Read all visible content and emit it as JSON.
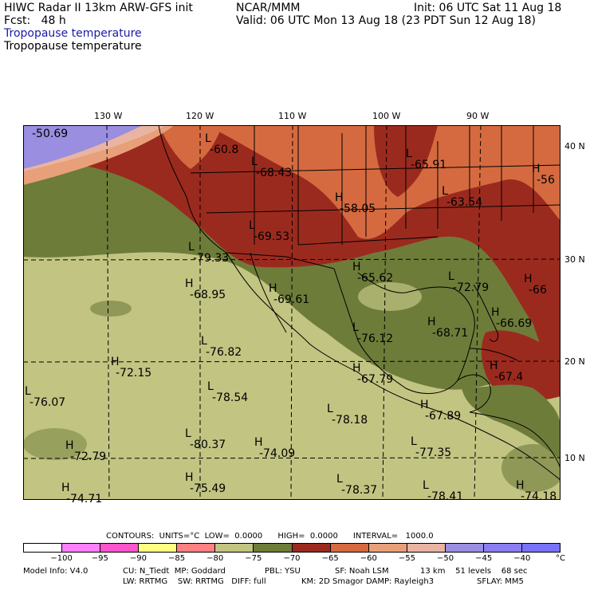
{
  "header": {
    "line1_left": "HIWC Radar II 13km ARW-GFS init",
    "line1_mid": "NCAR/MMM",
    "line1_right": "Init: 06 UTC Sat 11 Aug 18",
    "line2_left": "Fcst:   48 h",
    "line2_right": "Valid: 06 UTC Mon 13 Aug 18 (23 PDT Sun 12 Aug 18)",
    "line3": "Tropopause temperature",
    "line4": "Tropopause temperature"
  },
  "lon_labels": [
    "130 W",
    "120 W",
    "110 W",
    "100 W",
    "90 W"
  ],
  "lat_labels": [
    "40 N",
    "30 N",
    "20 N",
    "10 N"
  ],
  "extrema": [
    {
      "type": "",
      "value": "-50.69"
    },
    {
      "type": "L",
      "value": "-60.8"
    },
    {
      "type": "L",
      "value": "-68.43"
    },
    {
      "type": "L",
      "value": "-65.91"
    },
    {
      "type": "H",
      "value": "-56"
    },
    {
      "type": "H",
      "value": "-58.05"
    },
    {
      "type": "L",
      "value": "-63.54"
    },
    {
      "type": "L",
      "value": "-69.53"
    },
    {
      "type": "L",
      "value": "-79.33"
    },
    {
      "type": "H",
      "value": "-65.62"
    },
    {
      "type": "H",
      "value": "-68.95"
    },
    {
      "type": "H",
      "value": "-69.61"
    },
    {
      "type": "L",
      "value": "-72.79"
    },
    {
      "type": "H",
      "value": "-66"
    },
    {
      "type": "H",
      "value": "-66.69"
    },
    {
      "type": "H",
      "value": "-68.71"
    },
    {
      "type": "L",
      "value": "-76.12"
    },
    {
      "type": "L",
      "value": "-76.82"
    },
    {
      "type": "H",
      "value": "-72.15"
    },
    {
      "type": "H",
      "value": "-67.79"
    },
    {
      "type": "H",
      "value": "-67.4"
    },
    {
      "type": "L",
      "value": "-76.07"
    },
    {
      "type": "L",
      "value": "-78.54"
    },
    {
      "type": "L",
      "value": "-78.18"
    },
    {
      "type": "H",
      "value": "-67.89"
    },
    {
      "type": "L",
      "value": "-80.37"
    },
    {
      "type": "H",
      "value": "-74.09"
    },
    {
      "type": "H",
      "value": "-72.79"
    },
    {
      "type": "L",
      "value": "-77.35"
    },
    {
      "type": "H",
      "value": "-75.49"
    },
    {
      "type": "L",
      "value": "-78.37"
    },
    {
      "type": "H",
      "value": "-74.71"
    },
    {
      "type": "L",
      "value": "-78.41"
    },
    {
      "type": "H",
      "value": "-74.18"
    }
  ],
  "contours_line": "CONTOURS:  UNITS=°C  LOW=  0.0000      HIGH=  0.0000      INTERVAL=   1000.0",
  "colorbar": {
    "colors": [
      "#ffffff",
      "#ff80ff",
      "#ff55cc",
      "#ffff80",
      "#ff8080",
      "#c2c482",
      "#6e7c3a",
      "#9b2a1e",
      "#d56a40",
      "#e8a07a",
      "#eab4a2",
      "#9a8ee0",
      "#8a7ef2",
      "#7a72fa"
    ],
    "labels": [
      "−100",
      "−95",
      "−90",
      "−85",
      "−80",
      "−75",
      "−70",
      "−65",
      "−60",
      "−55",
      "−50",
      "−45",
      "−40",
      "°C"
    ]
  },
  "footer": {
    "line1_a": "Model Info: V4.0",
    "line1_b": "CU: N_Tiedt  MP: Goddard",
    "line1_c": "PBL: YSU",
    "line1_d": "SF: Noah LSM",
    "line1_e": "13 km    51 levels    68 sec",
    "line2_b": "LW: RRTMG    SW: RRTMG   DIFF: full",
    "line2_c": "KM: 2D Smagor DAMP: Rayleigh3",
    "line2_e": "SFLAY: MM5"
  }
}
